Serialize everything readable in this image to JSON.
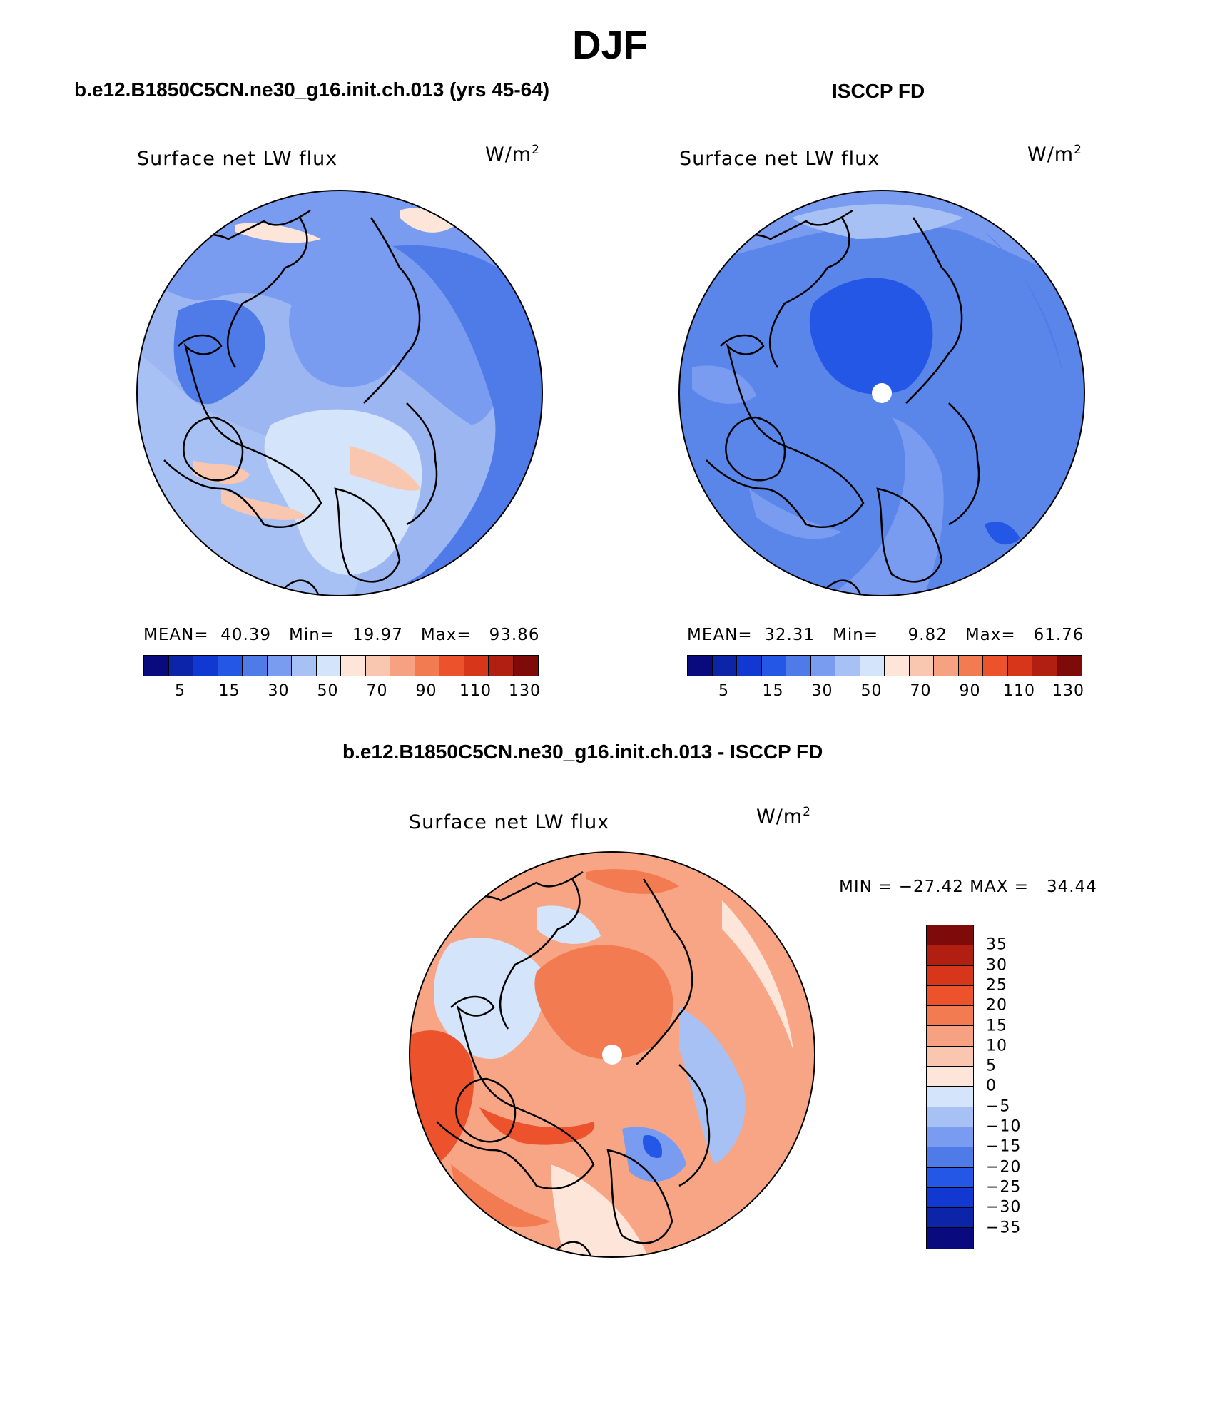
{
  "title": "DJF",
  "panels": {
    "model": {
      "title": "b.e12.B1850C5CN.ne30_g16.init.ch.013 (yrs 45-64)",
      "variable": "Surface net LW flux",
      "units_base": "W/m",
      "units_exp": "2",
      "mean_label": "MEAN=",
      "mean": "40.39",
      "min_label": "Min=",
      "min": "19.97",
      "max_label": "Max=",
      "max": "93.86",
      "base_color": "#9bb6f0"
    },
    "obs": {
      "title": "ISCCP FD",
      "variable": "Surface net LW flux",
      "units_base": "W/m",
      "units_exp": "2",
      "mean_label": "MEAN=",
      "mean": "32.31",
      "min_label": "Min=",
      "min": "9.82",
      "max_label": "Max=",
      "max": "61.76",
      "base_color": "#5a86ea"
    },
    "diff": {
      "title": "b.e12.B1850C5CN.ne30_g16.init.ch.013 - ISCCP FD",
      "variable": "Surface net LW flux",
      "units_base": "W/m",
      "units_exp": "2",
      "minmax_text": "MIN = −27.42 MAX =   34.44",
      "base_color": "#f8a585"
    }
  },
  "colorbar_abs": {
    "colors": [
      "#0a0a7f",
      "#0b24a8",
      "#1138d0",
      "#2457e6",
      "#4f7be9",
      "#7a9cf0",
      "#a8c1f4",
      "#d4e4fa",
      "#fde6d9",
      "#f9c7b0",
      "#f6a181",
      "#f27b51",
      "#ec522b",
      "#d8361a",
      "#b01f12",
      "#7f0a0a"
    ],
    "ticks": [
      "5",
      "15",
      "30",
      "50",
      "70",
      "90",
      "110",
      "130"
    ]
  },
  "colorbar_diff": {
    "colors": [
      "#7f0a0a",
      "#b01f12",
      "#d8361a",
      "#ec522b",
      "#f27b51",
      "#f6a181",
      "#f9c7b0",
      "#fde6d9",
      "#d4e4fa",
      "#a8c1f4",
      "#7a9cf0",
      "#4f7be9",
      "#2457e6",
      "#1138d0",
      "#0b24a8",
      "#0a0a7f"
    ],
    "ticks": [
      "35",
      "30",
      "25",
      "20",
      "15",
      "10",
      "5",
      "0",
      "−5",
      "−10",
      "−15",
      "−20",
      "−25",
      "−30",
      "−35"
    ]
  }
}
